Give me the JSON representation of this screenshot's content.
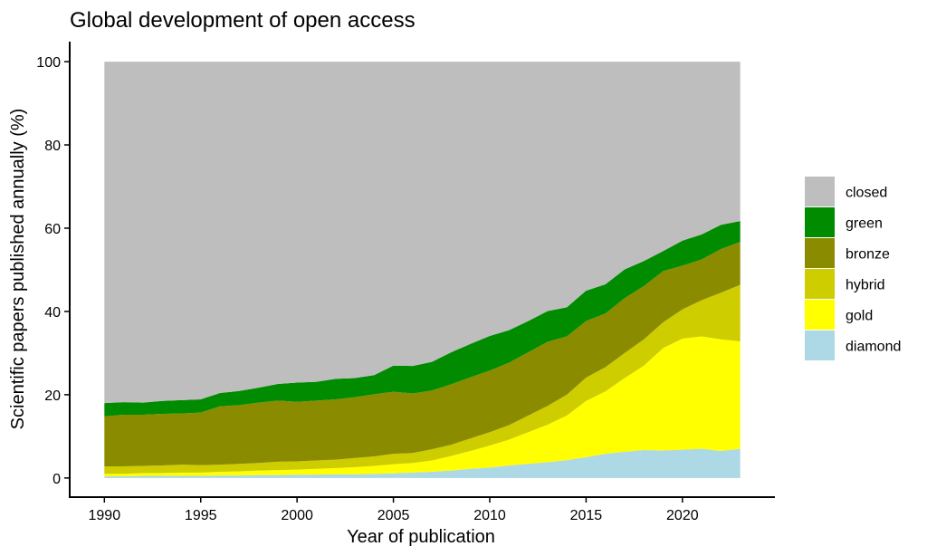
{
  "chart_data": {
    "type": "area",
    "stacked": true,
    "title": "Global development of open access",
    "xlabel": "Year of publication",
    "ylabel": "Scientific papers published annually (%)",
    "xlim": [
      1988.2,
      2024.8
    ],
    "ylim": [
      -4.6,
      104.8
    ],
    "x_ticks": [
      1990,
      1995,
      2000,
      2005,
      2010,
      2015,
      2020
    ],
    "y_ticks": [
      0,
      20,
      40,
      60,
      80,
      100
    ],
    "grid": false,
    "legend_position": "right",
    "x": [
      1990,
      1991,
      1992,
      1993,
      1994,
      1995,
      1996,
      1997,
      1998,
      1999,
      2000,
      2001,
      2002,
      2003,
      2004,
      2005,
      2006,
      2007,
      2008,
      2009,
      2010,
      2011,
      2012,
      2013,
      2014,
      2015,
      2016,
      2017,
      2018,
      2019,
      2020,
      2021,
      2022,
      2023
    ],
    "series": [
      {
        "name": "diamond",
        "color": "#add8e6",
        "values": [
          0.4,
          0.4,
          0.5,
          0.5,
          0.5,
          0.5,
          0.6,
          0.6,
          0.7,
          0.7,
          0.8,
          0.8,
          0.9,
          0.9,
          1.0,
          1.1,
          1.3,
          1.5,
          1.8,
          2.2,
          2.5,
          3.0,
          3.4,
          3.8,
          4.3,
          5.0,
          5.8,
          6.3,
          6.7,
          6.6,
          6.8,
          7.0,
          6.5,
          7.0
        ]
      },
      {
        "name": "gold",
        "color": "#ffff00",
        "values": [
          0.6,
          0.6,
          0.7,
          0.7,
          0.8,
          0.8,
          0.9,
          1.0,
          1.1,
          1.2,
          1.2,
          1.4,
          1.5,
          1.7,
          1.9,
          2.2,
          2.3,
          2.7,
          3.5,
          4.3,
          5.3,
          6.2,
          7.6,
          9.0,
          10.7,
          13.5,
          15.0,
          17.7,
          20.3,
          24.6,
          26.7,
          27.0,
          26.8,
          25.8
        ]
      },
      {
        "name": "hybrid",
        "color": "#cdcd00",
        "values": [
          1.8,
          1.8,
          1.7,
          1.8,
          1.9,
          1.8,
          1.7,
          1.8,
          1.8,
          2.0,
          2.0,
          2.0,
          2.0,
          2.2,
          2.3,
          2.5,
          2.4,
          2.7,
          2.7,
          3.0,
          3.2,
          3.5,
          4.0,
          4.5,
          5.0,
          5.6,
          5.8,
          6.0,
          6.3,
          6.2,
          7.0,
          8.7,
          11.2,
          13.6
        ]
      },
      {
        "name": "bronze",
        "color": "#8b8b00",
        "values": [
          12.0,
          12.4,
          12.3,
          12.4,
          12.3,
          12.6,
          14.0,
          14.1,
          14.5,
          14.7,
          14.3,
          14.4,
          14.5,
          14.6,
          14.9,
          14.9,
          14.3,
          14.1,
          14.5,
          14.7,
          14.8,
          15.0,
          15.2,
          15.4,
          14.0,
          13.6,
          12.9,
          13.2,
          12.8,
          12.3,
          10.5,
          9.8,
          10.5,
          10.3
        ]
      },
      {
        "name": "green",
        "color": "#008b00",
        "values": [
          3.2,
          3.0,
          2.9,
          3.1,
          3.2,
          3.2,
          3.2,
          3.4,
          3.6,
          4.0,
          4.6,
          4.5,
          4.9,
          4.6,
          4.6,
          6.3,
          6.6,
          6.9,
          7.7,
          8.0,
          8.3,
          7.8,
          7.5,
          7.4,
          7.0,
          7.3,
          7.0,
          6.9,
          6.0,
          4.8,
          6.0,
          6.0,
          5.8,
          5.0
        ]
      },
      {
        "name": "closed",
        "color": "#bebebe",
        "values": [
          82.0,
          81.8,
          81.9,
          81.5,
          81.3,
          81.1,
          79.6,
          79.1,
          78.3,
          77.4,
          77.1,
          76.9,
          76.2,
          76.0,
          75.3,
          73.0,
          73.1,
          72.1,
          69.8,
          67.8,
          65.9,
          64.5,
          62.3,
          59.9,
          59.0,
          55.0,
          53.5,
          49.9,
          47.9,
          45.5,
          43.0,
          41.5,
          39.2,
          38.3
        ]
      }
    ]
  }
}
